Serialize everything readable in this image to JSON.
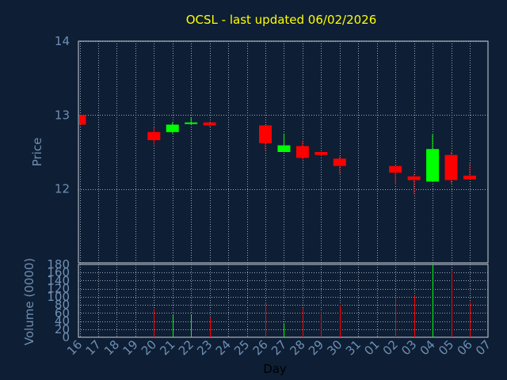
{
  "chart_data": {
    "title": "OCSL - last updated 06/02/2026",
    "colors": {
      "background": "#0e1e34",
      "title": "#ffff00",
      "labels": "#6e8fb3",
      "up": "#00ff00",
      "down": "#ff0000",
      "grid": "#9aa6b4",
      "frame": "#c9d2dc"
    },
    "days": [
      "16",
      "17",
      "18",
      "19",
      "20",
      "21",
      "22",
      "23",
      "24",
      "25",
      "26",
      "27",
      "28",
      "29",
      "30",
      "31",
      "01",
      "02",
      "03",
      "04",
      "05",
      "06",
      "07"
    ],
    "xlabel": "Day",
    "price_panel": {
      "type": "candlestick",
      "ylabel": "Price",
      "ylim": [
        11.0,
        14.0
      ],
      "yticks": [
        12,
        13,
        14
      ],
      "candles": [
        {
          "day": "16",
          "open": 13.0,
          "close": 12.87,
          "high": 13.0,
          "low": 12.87
        },
        {
          "day": "20",
          "open": 12.77,
          "close": 12.66,
          "high": 12.83,
          "low": 12.6
        },
        {
          "day": "21",
          "open": 12.77,
          "close": 12.87,
          "high": 12.9,
          "low": 12.75
        },
        {
          "day": "22",
          "open": 12.88,
          "close": 12.9,
          "high": 12.97,
          "low": 12.87
        },
        {
          "day": "23",
          "open": 12.9,
          "close": 12.86,
          "high": 12.91,
          "low": 12.84
        },
        {
          "day": "26",
          "open": 12.86,
          "close": 12.62,
          "high": 12.86,
          "low": 12.52
        },
        {
          "day": "27",
          "open": 12.5,
          "close": 12.59,
          "high": 12.75,
          "low": 12.5
        },
        {
          "day": "28",
          "open": 12.58,
          "close": 12.42,
          "high": 12.65,
          "low": 12.4
        },
        {
          "day": "29",
          "open": 12.5,
          "close": 12.46,
          "high": 12.5,
          "low": 12.45
        },
        {
          "day": "30",
          "open": 12.41,
          "close": 12.31,
          "high": 12.45,
          "low": 12.2
        },
        {
          "day": "02",
          "open": 12.31,
          "close": 12.22,
          "high": 12.31,
          "low": 12.06
        },
        {
          "day": "03",
          "open": 12.17,
          "close": 12.12,
          "high": 12.2,
          "low": 11.93
        },
        {
          "day": "04",
          "open": 12.1,
          "close": 12.54,
          "high": 12.74,
          "low": 12.1
        },
        {
          "day": "05",
          "open": 12.46,
          "close": 12.12,
          "high": 12.5,
          "low": 12.07
        },
        {
          "day": "06",
          "open": 12.18,
          "close": 12.13,
          "high": 12.35,
          "low": 12.13
        }
      ]
    },
    "volume_panel": {
      "type": "bar",
      "ylabel": "Volume (0000)",
      "ylim": [
        0,
        180
      ],
      "yticks": [
        0,
        20,
        40,
        60,
        80,
        100,
        120,
        140,
        160,
        180
      ],
      "bars": [
        {
          "day": "20",
          "value": 70,
          "direction": "down"
        },
        {
          "day": "21",
          "value": 55,
          "direction": "up"
        },
        {
          "day": "22",
          "value": 55,
          "direction": "up"
        },
        {
          "day": "23",
          "value": 48,
          "direction": "down"
        },
        {
          "day": "26",
          "value": 85,
          "direction": "down"
        },
        {
          "day": "27",
          "value": 35,
          "direction": "up"
        },
        {
          "day": "28",
          "value": 73,
          "direction": "down"
        },
        {
          "day": "29",
          "value": 62,
          "direction": "down"
        },
        {
          "day": "30",
          "value": 80,
          "direction": "down"
        },
        {
          "day": "02",
          "value": 100,
          "direction": "down"
        },
        {
          "day": "03",
          "value": 103,
          "direction": "down"
        },
        {
          "day": "04",
          "value": 182,
          "direction": "up"
        },
        {
          "day": "05",
          "value": 165,
          "direction": "down"
        },
        {
          "day": "06",
          "value": 87,
          "direction": "down"
        }
      ]
    }
  }
}
